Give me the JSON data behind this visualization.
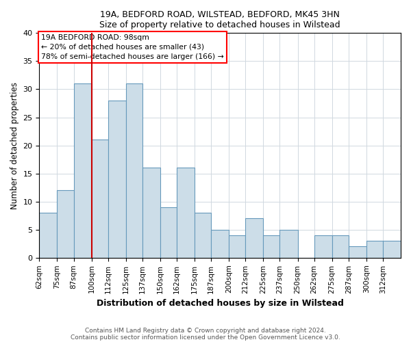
{
  "title1": "19A, BEDFORD ROAD, WILSTEAD, BEDFORD, MK45 3HN",
  "title2": "Size of property relative to detached houses in Wilstead",
  "xlabel": "Distribution of detached houses by size in Wilstead",
  "ylabel": "Number of detached properties",
  "footnote1": "Contains HM Land Registry data © Crown copyright and database right 2024.",
  "footnote2": "Contains public sector information licensed under the Open Government Licence v3.0.",
  "categories": [
    "62sqm",
    "75sqm",
    "87sqm",
    "100sqm",
    "112sqm",
    "125sqm",
    "137sqm",
    "150sqm",
    "162sqm",
    "175sqm",
    "187sqm",
    "200sqm",
    "212sqm",
    "225sqm",
    "237sqm",
    "250sqm",
    "262sqm",
    "275sqm",
    "287sqm",
    "300sqm",
    "312sqm"
  ],
  "values": [
    8,
    12,
    31,
    21,
    28,
    31,
    16,
    9,
    16,
    8,
    5,
    4,
    7,
    4,
    5,
    0,
    4,
    4,
    2,
    3,
    3
  ],
  "bar_color": "#ccdde8",
  "bar_edge_color": "#6699bb",
  "vline_x": 100,
  "vline_color": "#cc0000",
  "annotation_title": "19A BEDFORD ROAD: 98sqm",
  "annotation_line1": "← 20% of detached houses are smaller (43)",
  "annotation_line2": "78% of semi-detached houses are larger (166) →",
  "ylim": [
    0,
    40
  ],
  "yticks": [
    0,
    5,
    10,
    15,
    20,
    25,
    30,
    35,
    40
  ],
  "bin_edges": [
    62,
    75,
    87,
    100,
    112,
    125,
    137,
    150,
    162,
    175,
    187,
    200,
    212,
    225,
    237,
    250,
    262,
    275,
    287,
    300,
    312,
    325
  ]
}
